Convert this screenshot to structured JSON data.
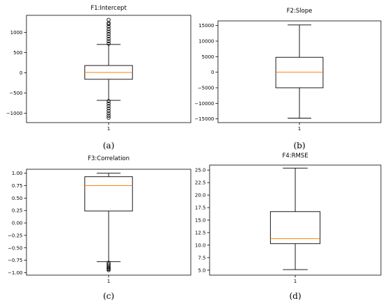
{
  "chart_data": [
    {
      "type": "box",
      "title": "F1:Intercept",
      "caption": "(a)",
      "categories": [
        "1"
      ],
      "ylim": [
        -1230,
        1420
      ],
      "yticks": [
        -1000,
        -500,
        0,
        500,
        1000
      ],
      "ytick_labels": [
        "−1000",
        "−500",
        "0",
        "500",
        "1000"
      ],
      "box": {
        "whislo": -680,
        "q1": -160,
        "median": 10,
        "q3": 180,
        "whishi": 700
      },
      "outliers_low": [
        -700,
        -760,
        -820,
        -880,
        -940,
        -1000,
        -1060,
        -1110
      ],
      "outliers_high": [
        720,
        780,
        840,
        900,
        960,
        1020,
        1080,
        1140,
        1200,
        1230,
        1310
      ]
    },
    {
      "type": "box",
      "title": "F2:Slope",
      "caption": "(b)",
      "categories": [
        "1"
      ],
      "ylim": [
        -16200,
        16500
      ],
      "yticks": [
        -15000,
        -10000,
        -5000,
        0,
        5000,
        10000,
        15000
      ],
      "ytick_labels": [
        "−15000",
        "−10000",
        "−5000",
        "0",
        "5000",
        "10000",
        "15000"
      ],
      "box": {
        "whislo": -14800,
        "q1": -5000,
        "median": 0,
        "q3": 4800,
        "whishi": 15200
      },
      "outliers_low": [],
      "outliers_high": []
    },
    {
      "type": "box",
      "title": "F3:Correlation",
      "caption": "(c)",
      "categories": [
        "1"
      ],
      "ylim": [
        -1.05,
        1.08
      ],
      "yticks": [
        -1.0,
        -0.75,
        -0.5,
        -0.25,
        0.0,
        0.25,
        0.5,
        0.75,
        1.0
      ],
      "ytick_labels": [
        "−1.00",
        "−0.75",
        "−0.50",
        "−0.25",
        "0.00",
        "0.25",
        "0.50",
        "0.75",
        "1.00"
      ],
      "box": {
        "whislo": -0.78,
        "q1": 0.24,
        "median": 0.75,
        "q3": 0.93,
        "whishi": 1.0
      },
      "outliers_low": [
        -0.8,
        -0.83,
        -0.86,
        -0.89,
        -0.91,
        -0.93,
        -0.95
      ],
      "outliers_high": []
    },
    {
      "type": "box",
      "title": "F4:RMSE",
      "caption": "(d)",
      "categories": [
        "1"
      ],
      "ylim": [
        4.0,
        26.0
      ],
      "yticks": [
        5.0,
        7.5,
        10.0,
        12.5,
        15.0,
        17.5,
        20.0,
        22.5,
        25.0
      ],
      "ytick_labels": [
        "5.0",
        "7.5",
        "10.0",
        "12.5",
        "15.0",
        "17.5",
        "20.0",
        "22.5",
        "25.0"
      ],
      "box": {
        "whislo": 5.1,
        "q1": 10.3,
        "median": 11.3,
        "q3": 16.7,
        "whishi": 25.4
      },
      "outliers_low": [],
      "outliers_high": []
    }
  ],
  "colors": {
    "box": "#000000",
    "median": "#ff7f0e"
  }
}
